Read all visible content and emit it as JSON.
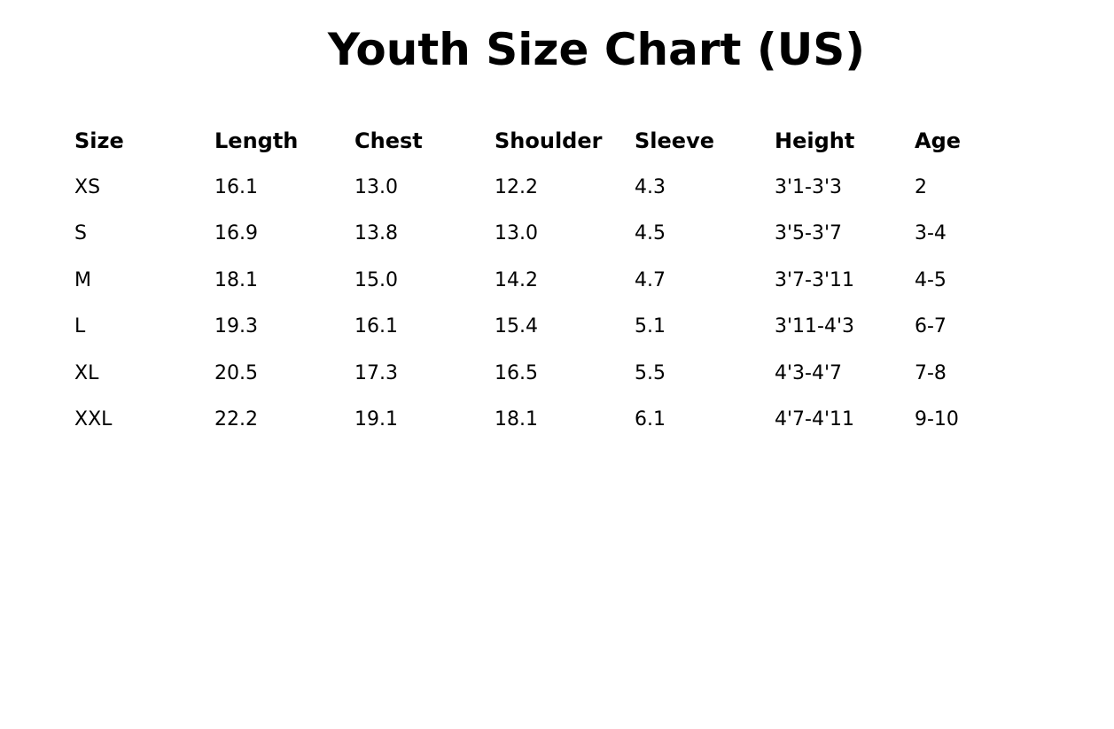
{
  "title": "Youth Size Chart (US)",
  "table": {
    "headers": [
      "Size",
      "Length",
      "Chest",
      "Shoulder",
      "Sleeve",
      "Height",
      "Age"
    ],
    "rows": [
      [
        "XS",
        "16.1",
        "13.0",
        "12.2",
        "4.3",
        "3'1-3'3",
        "2"
      ],
      [
        "S",
        "16.9",
        "13.8",
        "13.0",
        "4.5",
        "3'5-3'7",
        "3-4"
      ],
      [
        "M",
        "18.1",
        "15.0",
        "14.2",
        "4.7",
        "3'7-3'11",
        "4-5"
      ],
      [
        "L",
        "19.3",
        "16.1",
        "15.4",
        "5.1",
        "3'11-4'3",
        "6-7"
      ],
      [
        "XL",
        "20.5",
        "17.3",
        "16.5",
        "5.5",
        "4'3-4'7",
        "7-8"
      ],
      [
        "XXL",
        "22.2",
        "19.1",
        "18.1",
        "6.1",
        "4'7-4'11",
        "9-10"
      ]
    ]
  }
}
